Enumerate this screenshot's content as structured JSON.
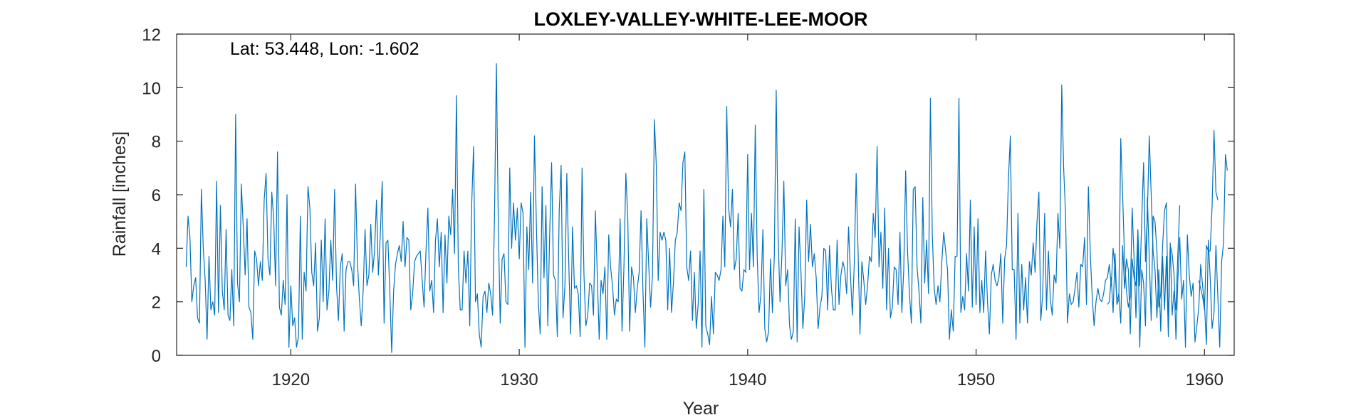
{
  "chart_data": {
    "type": "line",
    "title": "LOXLEY-VALLEY-WHITE-LEE-MOOR",
    "annotation": "Lat: 53.448, Lon: -1.602",
    "xlabel": "Year",
    "ylabel": "Rainfall [inches]",
    "xlim": [
      1915.0,
      1961.3
    ],
    "ylim": [
      0,
      12
    ],
    "xticks": [
      1920,
      1930,
      1940,
      1950,
      1960
    ],
    "yticks": [
      0,
      2,
      4,
      6,
      8,
      10,
      12
    ],
    "grid": false,
    "line_color": "#0072BD",
    "series": [
      {
        "frequency": "monthly",
        "start": "1915-06",
        "values": [
          3.3,
          5.2,
          4.4,
          2.0,
          2.6,
          2.9,
          1.4,
          1.2,
          6.2,
          4.0,
          2.8,
          0.6,
          3.7,
          1.7,
          2.0,
          1.5,
          6.5,
          1.6,
          5.6,
          2.4,
          1.7,
          4.7,
          1.5,
          1.3,
          3.2,
          1.1,
          9.0,
          2.7,
          2.0,
          6.4,
          4.8,
          3.0,
          5.1,
          1.8,
          1.6,
          0.6,
          3.9,
          3.6,
          2.6,
          3.5,
          2.8,
          5.8,
          6.8,
          3.6,
          3.0,
          6.1,
          5.1,
          2.6,
          7.6,
          1.8,
          1.5,
          2.8,
          1.9,
          6.0,
          0.3,
          2.6,
          1.1,
          1.4,
          0.3,
          0.7,
          5.2,
          0.6,
          3.1,
          2.4,
          6.3,
          5.5,
          3.1,
          2.6,
          4.2,
          0.9,
          1.4,
          4.3,
          2.0,
          5.1,
          1.7,
          2.4,
          4.3,
          2.8,
          6.2,
          2.6,
          1.3,
          3.3,
          3.8,
          0.9,
          3.2,
          3.5,
          3.5,
          3.2,
          2.6,
          6.4,
          3.5,
          2.1,
          1.1,
          2.4,
          4.7,
          2.6,
          3.0,
          4.9,
          3.1,
          3.9,
          5.8,
          3.0,
          4.5,
          6.5,
          1.2,
          4.2,
          4.3,
          2.4,
          0.1,
          2.4,
          3.4,
          3.8,
          4.1,
          3.5,
          5.0,
          3.3,
          4.4,
          4.3,
          1.7,
          2.3,
          3.5,
          3.7,
          3.8,
          3.9,
          2.8,
          1.8,
          3.9,
          5.5,
          2.4,
          2.8,
          1.6,
          4.3,
          5.1,
          3.3,
          4.6,
          1.6,
          4.5,
          2.7,
          5.2,
          4.5,
          6.2,
          3.8,
          9.7,
          3.3,
          1.7,
          1.7,
          3.9,
          2.7,
          3.9,
          1.1,
          5.6,
          7.8,
          2.0,
          2.3,
          0.8,
          0.3,
          2.2,
          2.4,
          1.6,
          2.7,
          2.3,
          1.5,
          5.2,
          10.9,
          4.9,
          1.2,
          3.6,
          3.8,
          2.0,
          1.9,
          7.0,
          4.0,
          5.7,
          4.3,
          5.5,
          3.6,
          5.7,
          5.3,
          0.3,
          4.8,
          3.2,
          6.1,
          2.7,
          8.2,
          4.9,
          2.0,
          0.8,
          6.3,
          2.9,
          5.6,
          1.1,
          4.6,
          7.2,
          3.0,
          2.8,
          0.7,
          5.4,
          7.1,
          1.4,
          2.6,
          6.8,
          3.5,
          0.8,
          4.8,
          2.5,
          2.6,
          2.3,
          0.7,
          7.0,
          3.0,
          1.1,
          1.5,
          2.7,
          2.6,
          1.5,
          5.4,
          3.0,
          0.6,
          2.8,
          2.3,
          3.3,
          0.6,
          4.5,
          3.3,
          2.6,
          1.5,
          2.1,
          2.0,
          5.1,
          0.9,
          3.3,
          6.8,
          5.2,
          0.9,
          3.3,
          2.9,
          1.6,
          2.5,
          3.1,
          5.4,
          2.4,
          0.3,
          5.1,
          3.4,
          1.8,
          3.0,
          8.8,
          7.1,
          2.8,
          4.6,
          4.3,
          4.6,
          4.3,
          1.7,
          4.0,
          1.6,
          2.7,
          4.3,
          4.6,
          5.7,
          5.4,
          7.2,
          7.6,
          3.3,
          2.8,
          3.9,
          1.3,
          3.1,
          1.0,
          1.9,
          3.9,
          0.3,
          6.2,
          1.1,
          0.8,
          0.4,
          2.2,
          0.8,
          3.1,
          3.0,
          2.8,
          3.2,
          5.2,
          3.3,
          9.3,
          5.5,
          4.8,
          6.2,
          3.2,
          3.6,
          5.3,
          2.5,
          2.4,
          3.2,
          3.1,
          7.5,
          3.2,
          5.3,
          3.3,
          8.6,
          3.7,
          1.6,
          2.3,
          4.7,
          1.0,
          0.5,
          0.9,
          3.6,
          1.6,
          3.7,
          9.9,
          4.5,
          2.0,
          3.8,
          6.5,
          2.6,
          3.2,
          1.1,
          0.6,
          0.9,
          5.1,
          0.5,
          4.8,
          3.1,
          1.0,
          2.2,
          5.8,
          3.5,
          4.9,
          3.3,
          3.8,
          2.9,
          1.0,
          1.8,
          2.2,
          4.0,
          3.9,
          1.7,
          4.1,
          2.5,
          1.7,
          1.7,
          4.3,
          1.9,
          3.0,
          3.5,
          3.2,
          2.3,
          4.8,
          3.0,
          1.5,
          3.4,
          6.8,
          3.9,
          0.8,
          3.5,
          2.8,
          1.9,
          2.6,
          3.7,
          3.5,
          5.3,
          4.4,
          7.8,
          3.3,
          4.6,
          2.5,
          5.5,
          1.7,
          4.0,
          1.4,
          1.8,
          3.3,
          3.2,
          1.9,
          4.6,
          1.6,
          3.2,
          6.9,
          3.9,
          2.3,
          1.2,
          6.2,
          6.3,
          3.3,
          2.4,
          1.2,
          5.9,
          2.7,
          4.3,
          2.3,
          9.6,
          4.5,
          2.5,
          1.9,
          2.6,
          2.0,
          3.5,
          4.6,
          3.9,
          3.2,
          0.6,
          1.7,
          0.9,
          3.7,
          3.7,
          9.6,
          1.6,
          2.2,
          1.7,
          3.8,
          2.4,
          5.8,
          1.8,
          4.8,
          1.9,
          5.1,
          1.6,
          2.8,
          1.6,
          3.9,
          2.0,
          0.8,
          3.0,
          3.4,
          2.8,
          2.6,
          2.9,
          3.8,
          1.2,
          3.6,
          4.1,
          6.6,
          8.2,
          3.2,
          3.2,
          0.6,
          5.3,
          1.2,
          3.4,
          1.7,
          2.9,
          1.2,
          3.5,
          3.0,
          4.2,
          3.1,
          5.0,
          6.1,
          1.3,
          2.3,
          5.3,
          1.7,
          3.9,
          2.1,
          1.5,
          3.0,
          2.7,
          5.3,
          4.0,
          10.1,
          7.0,
          5.3,
          1.2,
          2.3,
          1.9,
          2.0,
          2.5,
          3.1,
          1.8,
          3.4,
          3.3,
          4.4,
          1.9,
          6.3,
          3.8,
          2.2,
          1.1,
          2.0,
          2.5,
          2.1,
          2.0,
          2.3,
          2.8,
          2.9,
          3.4,
          2.6,
          4.0,
          3.2,
          2.0,
          2.3,
          1.2,
          4.1,
          2.5,
          3.6,
          3.2,
          0.8,
          3.6,
          2.9,
          2.6,
          4.7,
          2.6,
          5.0,
          7.2,
          3.5,
          5.3,
          8.2,
          6.0,
          3.9,
          3.2,
          1.4,
          3.2,
          0.9,
          3.7,
          1.7,
          3.7,
          0.7,
          4.2,
          1.5,
          2.4,
          1.7,
          3.8,
          5.6
        ]
      },
      {
        "frequency": "monthly",
        "start": "1955-10",
        "values": [
          1.9,
          2.0,
          2.9,
          1.6,
          3.8,
          1.9,
          2.1,
          8.1,
          6.0,
          3.6,
          2.4,
          1.8,
          2.2,
          5.5,
          3.6,
          1.4,
          4.3,
          0.3,
          3.2,
          2.7,
          1.1,
          5.9,
          3.6,
          1.3,
          5.2,
          5.0,
          3.9,
          1.8,
          2.3,
          4.1,
          5.4,
          5.7,
          1.1,
          4.1,
          3.8,
          3.0,
          0.6,
          2.8,
          4.4,
          2.1,
          2.8,
          0.3,
          4.5,
          3.0,
          2.2,
          2.7,
          0.5,
          1.1,
          1.8,
          3.4,
          2.6,
          1.9,
          0.4,
          4.3,
          2.9,
          1.0,
          1.6,
          4.1,
          2.2,
          0.3,
          3.5,
          4.2,
          7.5,
          6.9
        ]
      },
      {
        "frequency": "monthly",
        "start": "1959-10",
        "values": [
          2.8,
          2.5,
          2.2,
          1.7,
          4.1,
          3.9,
          3.9,
          5.6,
          8.4,
          6.1,
          5.8
        ]
      }
    ]
  }
}
